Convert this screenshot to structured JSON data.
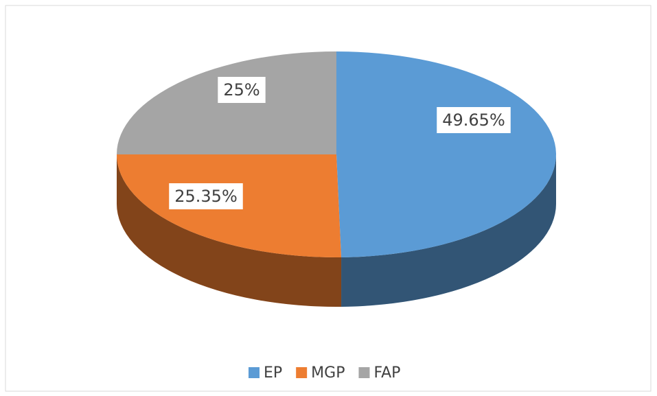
{
  "chart_data": {
    "type": "pie3d",
    "categories": [
      "EP",
      "MGP",
      "FAP"
    ],
    "values": [
      49.65,
      25.35,
      25
    ],
    "value_labels": [
      "49.65%",
      "25.35%",
      "25%"
    ],
    "colors": [
      "#5b9bd5",
      "#ed7d31",
      "#a5a5a5"
    ],
    "legend": "bottom"
  }
}
